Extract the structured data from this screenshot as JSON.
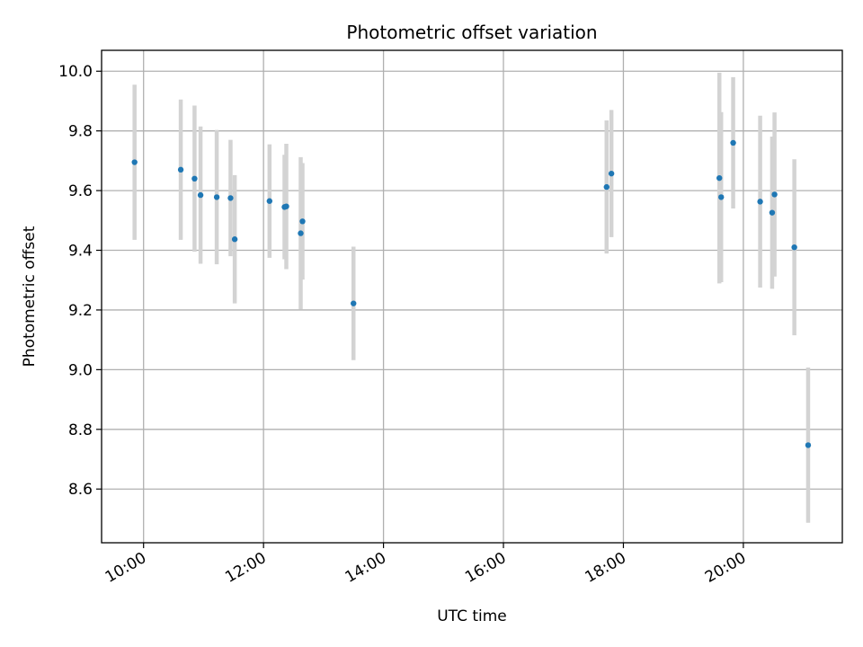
{
  "chart_data": {
    "type": "scatter",
    "title": "Photometric offset variation",
    "xlabel": "UTC time",
    "ylabel": "Photometric offset",
    "grid": true,
    "xlim": [
      9.3,
      21.65
    ],
    "ylim": [
      8.42,
      10.07
    ],
    "x_ticks": [
      {
        "value": 10,
        "label": "10:00"
      },
      {
        "value": 12,
        "label": "12:00"
      },
      {
        "value": 14,
        "label": "14:00"
      },
      {
        "value": 16,
        "label": "16:00"
      },
      {
        "value": 18,
        "label": "18:00"
      },
      {
        "value": 20,
        "label": "20:00"
      }
    ],
    "y_ticks": [
      {
        "value": 8.6,
        "label": "8.6"
      },
      {
        "value": 8.8,
        "label": "8.8"
      },
      {
        "value": 9.0,
        "label": "9.0"
      },
      {
        "value": 9.2,
        "label": "9.2"
      },
      {
        "value": 9.4,
        "label": "9.4"
      },
      {
        "value": 9.6,
        "label": "9.6"
      },
      {
        "value": 9.8,
        "label": "9.8"
      },
      {
        "value": 10.0,
        "label": "10.0"
      }
    ],
    "colors": {
      "point": "#1f77b4",
      "errorbar": "#d3d3d3"
    },
    "series": [
      {
        "name": "Photometric offset",
        "points": [
          {
            "x": 9.85,
            "y": 9.695,
            "err": 0.26
          },
          {
            "x": 10.62,
            "y": 9.67,
            "err": 0.235
          },
          {
            "x": 10.85,
            "y": 9.64,
            "err": 0.245
          },
          {
            "x": 10.95,
            "y": 9.585,
            "err": 0.23
          },
          {
            "x": 11.22,
            "y": 9.578,
            "err": 0.225
          },
          {
            "x": 11.45,
            "y": 9.575,
            "err": 0.195
          },
          {
            "x": 11.52,
            "y": 9.437,
            "err": 0.215
          },
          {
            "x": 12.1,
            "y": 9.565,
            "err": 0.19
          },
          {
            "x": 12.35,
            "y": 9.545,
            "err": 0.175
          },
          {
            "x": 12.38,
            "y": 9.547,
            "err": 0.21
          },
          {
            "x": 12.62,
            "y": 9.457,
            "err": 0.255
          },
          {
            "x": 12.65,
            "y": 9.497,
            "err": 0.195
          },
          {
            "x": 13.5,
            "y": 9.222,
            "err": 0.19
          },
          {
            "x": 17.72,
            "y": 9.612,
            "err": 0.223
          },
          {
            "x": 17.8,
            "y": 9.657,
            "err": 0.213
          },
          {
            "x": 19.6,
            "y": 9.642,
            "err": 0.353
          },
          {
            "x": 19.63,
            "y": 9.578,
            "err": 0.285
          },
          {
            "x": 19.83,
            "y": 9.76,
            "err": 0.22
          },
          {
            "x": 20.28,
            "y": 9.563,
            "err": 0.288
          },
          {
            "x": 20.48,
            "y": 9.526,
            "err": 0.255
          },
          {
            "x": 20.52,
            "y": 9.587,
            "err": 0.275
          },
          {
            "x": 20.85,
            "y": 9.41,
            "err": 0.295
          },
          {
            "x": 21.08,
            "y": 8.747,
            "err": 0.26
          }
        ]
      }
    ]
  }
}
